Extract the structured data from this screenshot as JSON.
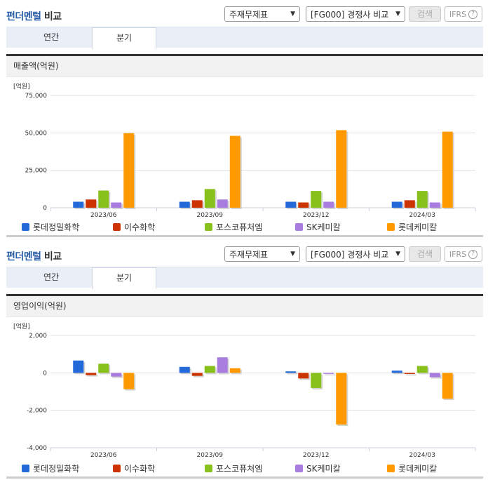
{
  "panels": [
    {
      "header": {
        "title_accent": "펀더멘털",
        "title_rest": " 비교"
      },
      "controls": {
        "report_select": "주재무제표",
        "compare_select": "[FG000] 경쟁사 비교",
        "search_button": "검색",
        "ifrs_button": "IFRS",
        "help_icon": "?"
      },
      "tabs": [
        {
          "label": "연간",
          "active": false
        },
        {
          "label": "분기",
          "active": true
        }
      ],
      "section_title": "매출액(억원)"
    },
    {
      "header": {
        "title_accent": "펀더멘털",
        "title_rest": " 비교"
      },
      "controls": {
        "report_select": "주재무제표",
        "compare_select": "[FG000] 경쟁사 비교",
        "search_button": "검색",
        "ifrs_button": "IFRS",
        "help_icon": "?"
      },
      "tabs": [
        {
          "label": "연간",
          "active": false
        },
        {
          "label": "분기",
          "active": true
        }
      ],
      "section_title": "영업이익(억원)"
    }
  ],
  "colors": {
    "롯데정밀화학": "#2369d9",
    "이수화학": "#cc3300",
    "포스코퓨처엠": "#88c01c",
    "SK케미칼": "#a97ce0",
    "롯데케미칼": "#ff9900"
  },
  "chart_data": [
    {
      "type": "bar",
      "title": "매출액(억원)",
      "ylabel": "[억원]",
      "xlabel": "",
      "categories": [
        "2023/06",
        "2023/09",
        "2023/12",
        "2024/03"
      ],
      "yticks": [
        "75,000",
        "50,000",
        "25,000",
        "0"
      ],
      "ylim": [
        0,
        75000
      ],
      "grid": true,
      "legend_position": "bottom",
      "series": [
        {
          "name": "롯데정밀화학",
          "values": [
            4000,
            4000,
            4000,
            4000
          ]
        },
        {
          "name": "이수화학",
          "values": [
            5500,
            5000,
            3500,
            5000
          ]
        },
        {
          "name": "포스코퓨처엠",
          "values": [
            11500,
            12500,
            11200,
            11200
          ]
        },
        {
          "name": "SK케미칼",
          "values": [
            3500,
            5500,
            4000,
            3500
          ]
        },
        {
          "name": "롯데케미칼",
          "values": [
            49800,
            48000,
            51800,
            50800
          ]
        }
      ]
    },
    {
      "type": "bar",
      "title": "영업이익(억원)",
      "ylabel": "[억원]",
      "xlabel": "",
      "categories": [
        "2023/06",
        "2023/09",
        "2023/12",
        "2024/03"
      ],
      "yticks": [
        "2,000",
        "0",
        "-2,000",
        "-4,000"
      ],
      "ylim": [
        -4000,
        2000
      ],
      "grid": true,
      "legend_position": "bottom",
      "series": [
        {
          "name": "롯데정밀화학",
          "values": [
            660,
            320,
            80,
            120
          ]
        },
        {
          "name": "이수화학",
          "values": [
            -120,
            -160,
            -300,
            -60
          ]
        },
        {
          "name": "포스코퓨처엠",
          "values": [
            490,
            370,
            -810,
            370
          ]
        },
        {
          "name": "SK케미칼",
          "values": [
            -200,
            830,
            -40,
            -230
          ]
        },
        {
          "name": "롯데케미칼",
          "values": [
            -870,
            250,
            -2760,
            -1380
          ]
        }
      ]
    }
  ]
}
